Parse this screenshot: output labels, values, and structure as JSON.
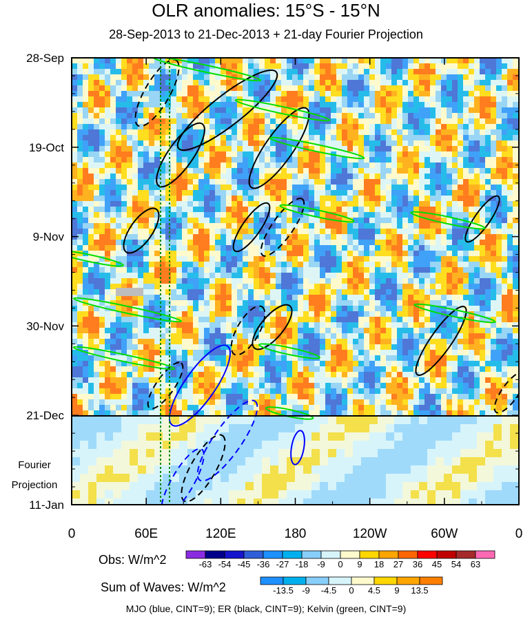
{
  "chart_data": {
    "type": "heatmap",
    "title": "OLR anomalies: 15°S - 15°N",
    "subtitle": "28-Sep-2013 to 21-Dec-2013 + 21-day Fourier Projection",
    "x_ticks": [
      "0",
      "60E",
      "120E",
      "180",
      "120W",
      "60W",
      "0"
    ],
    "x_tick_values": [
      0,
      60,
      120,
      180,
      240,
      300,
      360
    ],
    "x_range": [
      0,
      360
    ],
    "y_ticks": [
      "28-Sep",
      "19-Oct",
      "9-Nov",
      "30-Nov",
      "21-Dec",
      "11-Jan"
    ],
    "y_range": [
      "28-Sep-2013",
      "11-Jan-2014"
    ],
    "observation_end": "21-Dec",
    "projection_label_line1": "Fourier",
    "projection_label_line2": "Projection",
    "obs_legend": {
      "label": "Obs: W/m^2",
      "levels": [
        "-63",
        "-54",
        "-45",
        "-36",
        "-27",
        "-18",
        "-9",
        "0",
        "9",
        "18",
        "27",
        "36",
        "45",
        "54",
        "63"
      ],
      "colors": [
        "#8a2be2",
        "#00008b",
        "#1515cd",
        "#2f5fd8",
        "#1e90ff",
        "#00b0ee",
        "#87cefa",
        "#d7f4fb",
        "#fffacd",
        "#ffd700",
        "#ffa500",
        "#ff6600",
        "#ff0000",
        "#c00000",
        "#a52a2a",
        "#ff69b4"
      ]
    },
    "waves_legend": {
      "label": "Sum of Waves: W/m^2",
      "levels": [
        "-13.5",
        "-9",
        "-4.5",
        "0",
        "4.5",
        "9",
        "13.5"
      ],
      "colors": [
        "#1e90ff",
        "#00b0ee",
        "#87cefa",
        "#d7f4fb",
        "#fffacd",
        "#ffd700",
        "#ffa500",
        "#ff7f00"
      ]
    },
    "footer": "MJO (blue, CINT=9); ER (black, CINT=9); Kelvin (green, CINT=9)",
    "series": [
      {
        "name": "MJO",
        "color": "#0000ff",
        "cint": 9
      },
      {
        "name": "ER",
        "color": "#000000",
        "cint": 9
      },
      {
        "name": "Kelvin",
        "color": "#00cc00",
        "cint": 9
      }
    ]
  }
}
